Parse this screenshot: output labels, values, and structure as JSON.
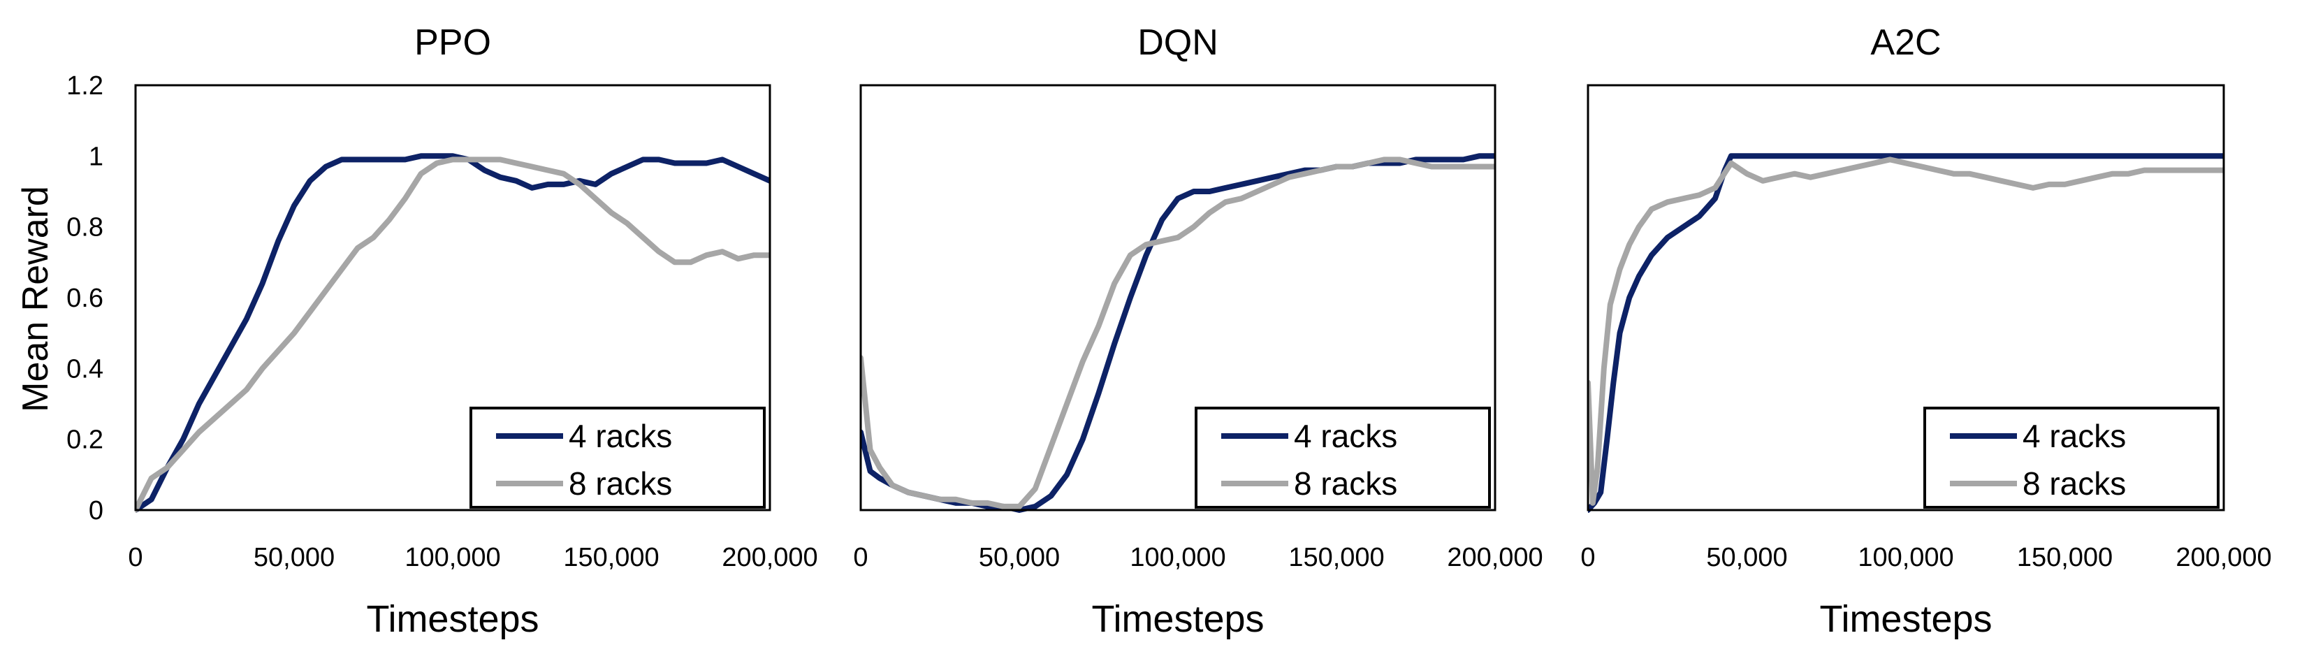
{
  "figure": {
    "ylabel": "Mean Reward",
    "colors": {
      "4 racks": "#0d2266",
      "8 racks": "#a6a6a6"
    }
  },
  "chart_data": [
    {
      "type": "line",
      "title": "PPO",
      "xlabel": "Timesteps",
      "ylabel": "Mean Reward",
      "xlim": [
        0,
        200000
      ],
      "ylim": [
        0,
        1.2
      ],
      "x_ticks": [
        "0",
        "50,000",
        "100,000",
        "150,000",
        "200,000"
      ],
      "y_ticks": [
        "0",
        "0.2",
        "0.4",
        "0.6",
        "0.8",
        "1",
        "1.2"
      ],
      "legend": {
        "placement": "bottom-right",
        "entries": [
          "4 racks",
          "8 racks"
        ]
      },
      "series": [
        {
          "name": "4 racks",
          "x": [
            0,
            5000,
            10000,
            15000,
            20000,
            25000,
            30000,
            35000,
            40000,
            45000,
            50000,
            55000,
            60000,
            65000,
            70000,
            75000,
            80000,
            85000,
            90000,
            95000,
            100000,
            105000,
            110000,
            115000,
            120000,
            125000,
            130000,
            135000,
            140000,
            145000,
            150000,
            155000,
            160000,
            165000,
            170000,
            175000,
            180000,
            185000,
            190000,
            195000,
            200000
          ],
          "y": [
            0,
            0.03,
            0.12,
            0.2,
            0.3,
            0.38,
            0.46,
            0.54,
            0.64,
            0.76,
            0.86,
            0.93,
            0.97,
            0.99,
            0.99,
            0.99,
            0.99,
            0.99,
            1.0,
            1.0,
            1.0,
            0.99,
            0.96,
            0.94,
            0.93,
            0.91,
            0.92,
            0.92,
            0.93,
            0.92,
            0.95,
            0.97,
            0.99,
            0.99,
            0.98,
            0.98,
            0.98,
            0.99,
            0.97,
            0.95,
            0.93
          ]
        },
        {
          "name": "8 racks",
          "x": [
            0,
            5000,
            10000,
            15000,
            20000,
            25000,
            30000,
            35000,
            40000,
            45000,
            50000,
            55000,
            60000,
            65000,
            70000,
            75000,
            80000,
            85000,
            90000,
            95000,
            100000,
            105000,
            110000,
            115000,
            120000,
            125000,
            130000,
            135000,
            140000,
            145000,
            150000,
            155000,
            160000,
            165000,
            170000,
            175000,
            180000,
            185000,
            190000,
            195000,
            200000
          ],
          "y": [
            0,
            0.09,
            0.12,
            0.17,
            0.22,
            0.26,
            0.3,
            0.34,
            0.4,
            0.45,
            0.5,
            0.56,
            0.62,
            0.68,
            0.74,
            0.77,
            0.82,
            0.88,
            0.95,
            0.98,
            0.99,
            0.99,
            0.99,
            0.99,
            0.98,
            0.97,
            0.96,
            0.95,
            0.92,
            0.88,
            0.84,
            0.81,
            0.77,
            0.73,
            0.7,
            0.7,
            0.72,
            0.73,
            0.71,
            0.72,
            0.72
          ]
        }
      ]
    },
    {
      "type": "line",
      "title": "DQN",
      "xlabel": "Timesteps",
      "ylabel": "",
      "xlim": [
        0,
        200000
      ],
      "ylim": [
        0,
        1.2
      ],
      "x_ticks": [
        "0",
        "50,000",
        "100,000",
        "150,000",
        "200,000"
      ],
      "y_ticks": [],
      "legend": {
        "placement": "bottom-right",
        "entries": [
          "4 racks",
          "8 racks"
        ]
      },
      "series": [
        {
          "name": "4 racks",
          "x": [
            0,
            3000,
            6000,
            10000,
            15000,
            20000,
            25000,
            30000,
            35000,
            40000,
            45000,
            50000,
            55000,
            60000,
            65000,
            70000,
            75000,
            80000,
            85000,
            90000,
            95000,
            100000,
            105000,
            110000,
            115000,
            120000,
            125000,
            130000,
            135000,
            140000,
            145000,
            150000,
            155000,
            160000,
            165000,
            170000,
            175000,
            180000,
            185000,
            190000,
            195000,
            200000
          ],
          "y": [
            0.22,
            0.11,
            0.09,
            0.07,
            0.05,
            0.04,
            0.03,
            0.02,
            0.02,
            0.01,
            0.01,
            0.0,
            0.01,
            0.04,
            0.1,
            0.2,
            0.33,
            0.47,
            0.6,
            0.72,
            0.82,
            0.88,
            0.9,
            0.9,
            0.91,
            0.92,
            0.93,
            0.94,
            0.95,
            0.96,
            0.96,
            0.97,
            0.97,
            0.98,
            0.98,
            0.98,
            0.99,
            0.99,
            0.99,
            0.99,
            1.0,
            1.0
          ]
        },
        {
          "name": "8 racks",
          "x": [
            0,
            3000,
            6000,
            10000,
            15000,
            20000,
            25000,
            30000,
            35000,
            40000,
            45000,
            50000,
            55000,
            60000,
            65000,
            70000,
            75000,
            80000,
            85000,
            90000,
            95000,
            100000,
            105000,
            110000,
            115000,
            120000,
            125000,
            130000,
            135000,
            140000,
            145000,
            150000,
            155000,
            160000,
            165000,
            170000,
            175000,
            180000,
            185000,
            190000,
            195000,
            200000
          ],
          "y": [
            0.43,
            0.17,
            0.12,
            0.07,
            0.05,
            0.04,
            0.03,
            0.03,
            0.02,
            0.02,
            0.01,
            0.01,
            0.06,
            0.18,
            0.3,
            0.42,
            0.52,
            0.64,
            0.72,
            0.75,
            0.76,
            0.77,
            0.8,
            0.84,
            0.87,
            0.88,
            0.9,
            0.92,
            0.94,
            0.95,
            0.96,
            0.97,
            0.97,
            0.98,
            0.99,
            0.99,
            0.98,
            0.97,
            0.97,
            0.97,
            0.97,
            0.97
          ]
        }
      ]
    },
    {
      "type": "line",
      "title": "A2C",
      "xlabel": "Timesteps",
      "ylabel": "",
      "xlim": [
        0,
        200000
      ],
      "ylim": [
        0,
        1.2
      ],
      "x_ticks": [
        "0",
        "50,000",
        "100,000",
        "150,000",
        "200,000"
      ],
      "y_ticks": [],
      "legend": {
        "placement": "bottom-right",
        "entries": [
          "4 racks",
          "8 racks"
        ]
      },
      "series": [
        {
          "name": "4 racks",
          "x": [
            0,
            2000,
            4000,
            6000,
            8000,
            10000,
            13000,
            16000,
            20000,
            25000,
            30000,
            35000,
            40000,
            43000,
            45000,
            50000,
            60000,
            80000,
            100000,
            120000,
            140000,
            160000,
            180000,
            200000
          ],
          "y": [
            0.0,
            0.02,
            0.05,
            0.2,
            0.36,
            0.5,
            0.6,
            0.66,
            0.72,
            0.77,
            0.8,
            0.83,
            0.88,
            0.96,
            1.0,
            1.0,
            1.0,
            1.0,
            1.0,
            1.0,
            1.0,
            1.0,
            1.0,
            1.0
          ]
        },
        {
          "name": "8 racks",
          "x": [
            0,
            1500,
            3000,
            5000,
            7000,
            10000,
            13000,
            16000,
            20000,
            25000,
            30000,
            35000,
            40000,
            45000,
            50000,
            55000,
            60000,
            65000,
            70000,
            75000,
            80000,
            85000,
            90000,
            95000,
            100000,
            105000,
            110000,
            115000,
            120000,
            125000,
            130000,
            135000,
            140000,
            145000,
            150000,
            155000,
            160000,
            165000,
            170000,
            175000,
            180000,
            185000,
            190000,
            195000,
            200000
          ],
          "y": [
            0.36,
            0.02,
            0.12,
            0.4,
            0.58,
            0.68,
            0.75,
            0.8,
            0.85,
            0.87,
            0.88,
            0.89,
            0.91,
            0.98,
            0.95,
            0.93,
            0.94,
            0.95,
            0.94,
            0.95,
            0.96,
            0.97,
            0.98,
            0.99,
            0.98,
            0.97,
            0.96,
            0.95,
            0.95,
            0.94,
            0.93,
            0.92,
            0.91,
            0.92,
            0.92,
            0.93,
            0.94,
            0.95,
            0.95,
            0.96,
            0.96,
            0.96,
            0.96,
            0.96,
            0.96
          ]
        }
      ]
    }
  ]
}
